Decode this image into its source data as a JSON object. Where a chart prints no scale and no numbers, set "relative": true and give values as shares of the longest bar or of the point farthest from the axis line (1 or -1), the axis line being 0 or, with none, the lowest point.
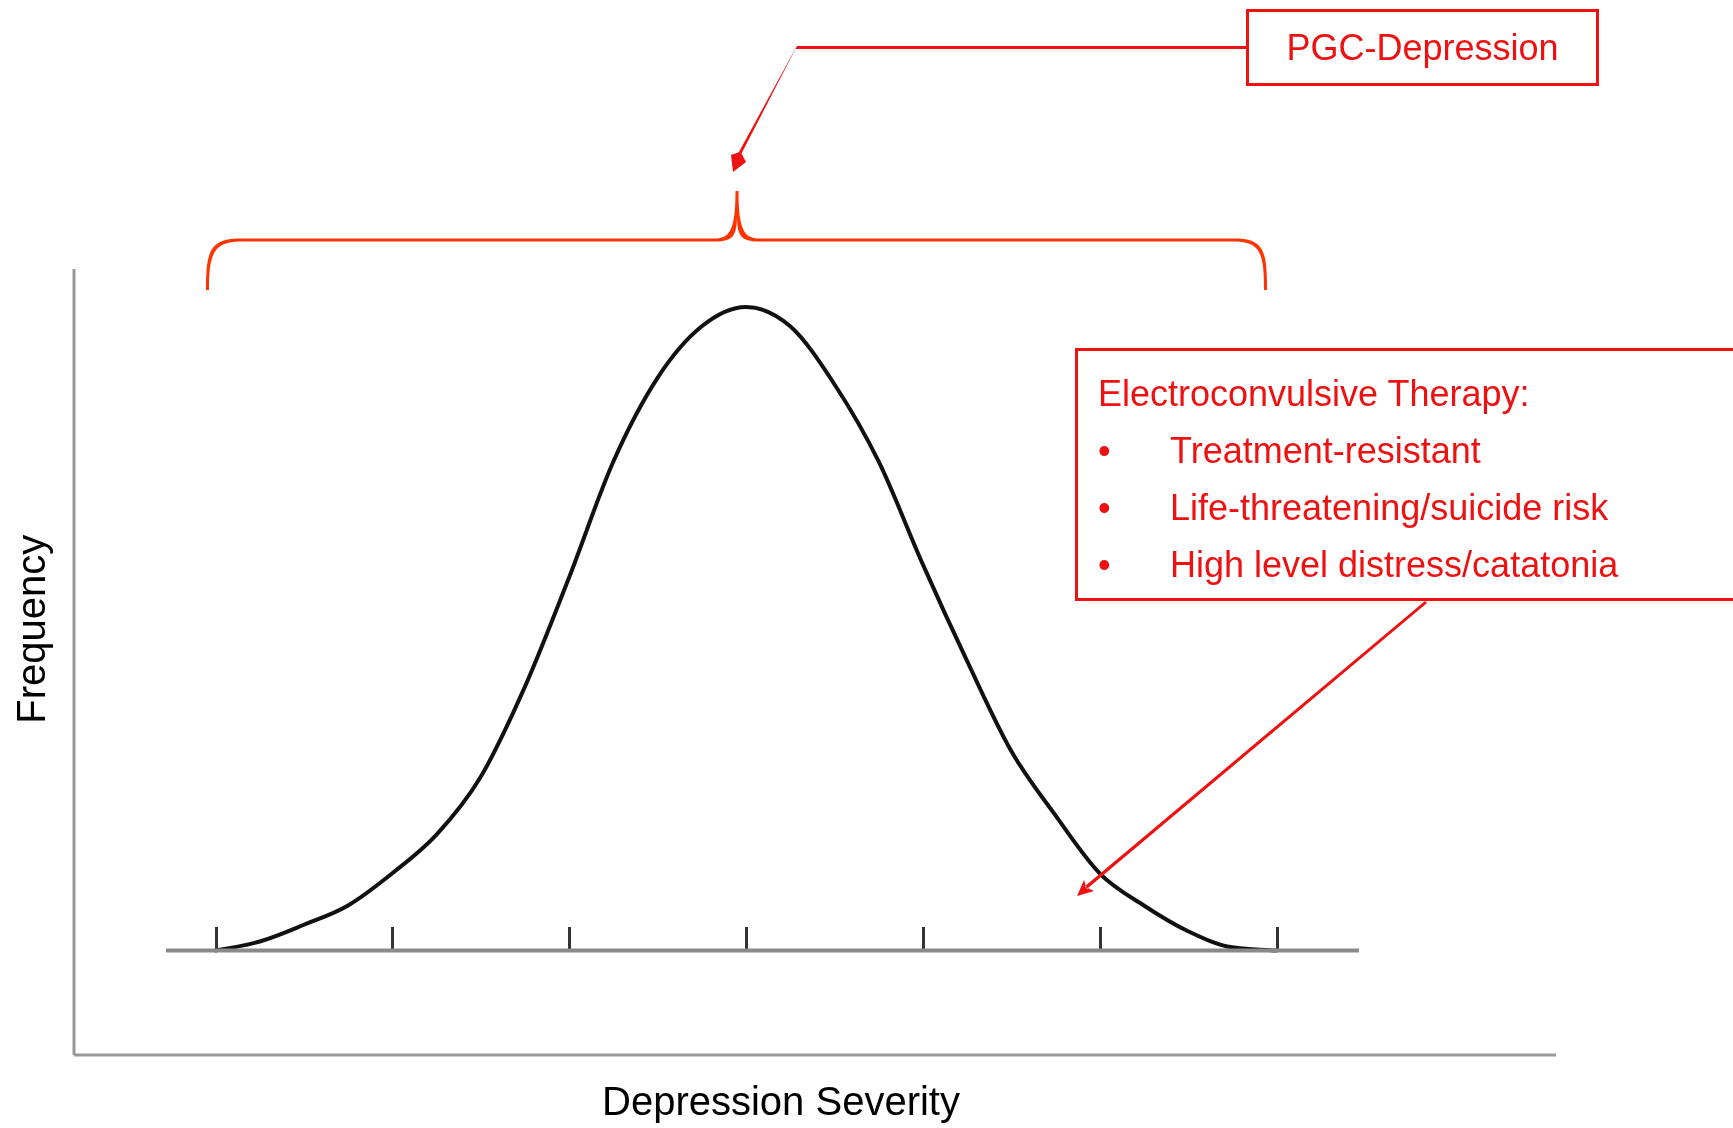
{
  "chart_data": {
    "type": "line",
    "relative": true,
    "xlabel": "Depression Severity",
    "ylabel": "Frequency",
    "categories": [
      null,
      null,
      null,
      null,
      null,
      null,
      null,
      null,
      null,
      null,
      null,
      null,
      null,
      null,
      null,
      null,
      null,
      null,
      null,
      null,
      null,
      null,
      null,
      null,
      null
    ],
    "series": [
      {
        "color": "#111111",
        "values": [
          0,
          0.014,
          0.04,
          0.07,
          0.12,
          0.18,
          0.27,
          0.41,
          0.58,
          0.76,
          0.89,
          0.97,
          1,
          0.97,
          0.88,
          0.76,
          0.6,
          0.45,
          0.31,
          0.21,
          0.12,
          0.07,
          0.03,
          0.005,
          0
        ]
      }
    ],
    "annotations": [
      "PGC-Depression",
      "Electroconvulsive Therapy:",
      "• Treatment-resistant",
      "• Life-threatening/suicide risk",
      "• High level distress/catatonia"
    ]
  }
}
